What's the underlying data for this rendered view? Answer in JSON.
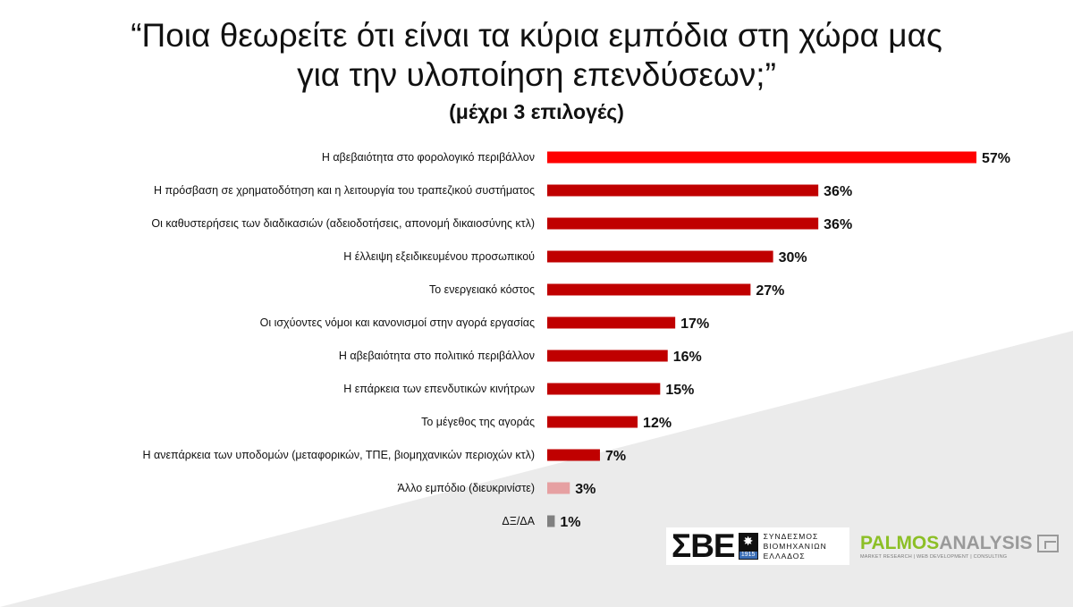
{
  "title": {
    "line1": "“Ποια θεωρείτε ότι είναι τα κύρια εμπόδια στη χώρα μας",
    "line2": "για την υλοποίηση επενδύσεων;”",
    "subtitle": "(μέχρι 3 επιλογές)"
  },
  "chart_data": {
    "type": "bar",
    "orientation": "horizontal",
    "categories": [
      "Η αβεβαιότητα στο φορολογικό περιβάλλον",
      "Η πρόσβαση σε χρηματοδότηση και η λειτουργία του τραπεζικού συστήματος",
      "Οι καθυστερήσεις των διαδικασιών (αδειοδοτήσεις, απονομή δικαιοσύνης κτλ)",
      "Η έλλειψη εξειδικευμένου προσωπικού",
      "Το ενεργειακό κόστος",
      "Οι ισχύοντες νόμοι και κανονισμοί στην αγορά εργασίας",
      "Η αβεβαιότητα στο πολιτικό περιβάλλον",
      "Η επάρκεια των επενδυτικών κινήτρων",
      "Το μέγεθος της αγοράς",
      "Η ανεπάρκεια των υποδομών (μεταφορικών, ΤΠΕ, βιομηχανικών περιοχών κτλ)",
      "Άλλο εμπόδιο (διευκρινίστε)",
      "ΔΞ/ΔΑ"
    ],
    "values": [
      57,
      36,
      36,
      30,
      27,
      17,
      16,
      15,
      12,
      7,
      3,
      1
    ],
    "value_labels": [
      "57%",
      "36%",
      "36%",
      "30%",
      "27%",
      "17%",
      "16%",
      "15%",
      "12%",
      "7%",
      "3%",
      "1%"
    ],
    "colors": [
      "#ff0000",
      "#c00000",
      "#c00000",
      "#c00000",
      "#c00000",
      "#c00000",
      "#c00000",
      "#c00000",
      "#c00000",
      "#c00000",
      "#e6a0a2",
      "#808080"
    ],
    "unit": "%",
    "xlim": [
      0,
      57
    ],
    "grid": false,
    "legend": "none"
  },
  "logos": {
    "sbe": {
      "letters": "ΣΒΕ",
      "year": "1915",
      "line1": "ΣΥΝΔΕΣΜΟΣ",
      "line2": "ΒΙΟΜΗΧΑΝΙΩΝ",
      "line3": "ΕΛΛΑΔΟΣ"
    },
    "palmos": {
      "part1": "PALMOS",
      "part2": "ANALYSIS",
      "tagline": "MARKET RESEARCH | WEB DEVELOPMENT | CONSULTING"
    }
  },
  "colors": {
    "accent": "#c00000",
    "highlight": "#ff0000",
    "background_wedge": "#ebebeb"
  }
}
